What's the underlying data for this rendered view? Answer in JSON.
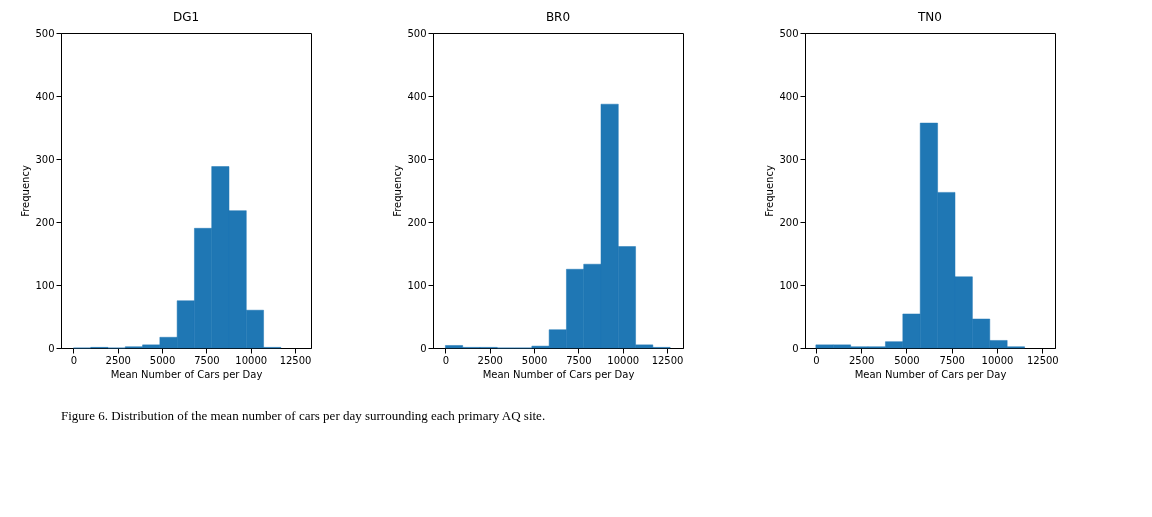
{
  "chart_data": [
    {
      "type": "histogram",
      "title": "DG1",
      "xlabel": "Mean Number of Cars per Day",
      "ylabel": "Frequency",
      "color": "#1f77b4",
      "bins": [
        0,
        975,
        1950,
        2925,
        3900,
        4875,
        5850,
        6825,
        7800,
        8775,
        9750,
        10725,
        11700
      ],
      "values": [
        0,
        1,
        0,
        2,
        5,
        17,
        75,
        190,
        288,
        218,
        60,
        1
      ],
      "xlim": [
        -700,
        13400
      ],
      "xticks": [
        0,
        2500,
        5000,
        7500,
        10000,
        12500
      ],
      "ylim": [
        0,
        500
      ],
      "yticks": [
        0,
        100,
        200,
        300,
        400,
        500
      ],
      "grid": false,
      "annotations": [
        "Figure 6. Distribution of the mean number of cars per day surrounding each primary AQ site."
      ]
    },
    {
      "type": "histogram",
      "title": "BR0",
      "xlabel": "Mean Number of Cars per Day",
      "ylabel": "Frequency",
      "color": "#1f77b4",
      "bins": [
        0,
        975,
        1950,
        2925,
        3900,
        4875,
        5850,
        6825,
        7800,
        8775,
        9750,
        10725,
        11700,
        12675
      ],
      "values": [
        4,
        1,
        1,
        0,
        0,
        3,
        29,
        125,
        133,
        387,
        161,
        5,
        1
      ],
      "xlim": [
        -700,
        13400
      ],
      "xticks": [
        0,
        2500,
        5000,
        7500,
        10000,
        12500
      ],
      "ylim": [
        0,
        500
      ],
      "yticks": [
        0,
        100,
        200,
        300,
        400,
        500
      ],
      "grid": false
    },
    {
      "type": "histogram",
      "title": "TN0",
      "xlabel": "Mean Number of Cars per Day",
      "ylabel": "Frequency",
      "color": "#1f77b4",
      "bins": [
        0,
        960,
        1920,
        2880,
        3840,
        4800,
        5760,
        6720,
        7680,
        8640,
        9600,
        10560,
        11520
      ],
      "values": [
        5,
        5,
        2,
        2,
        10,
        54,
        357,
        247,
        113,
        46,
        12,
        2
      ],
      "xlim": [
        -600,
        13200
      ],
      "xticks": [
        0,
        2500,
        5000,
        7500,
        10000,
        12500
      ],
      "ylim": [
        0,
        500
      ],
      "yticks": [
        0,
        100,
        200,
        300,
        400,
        500
      ],
      "grid": false
    }
  ]
}
